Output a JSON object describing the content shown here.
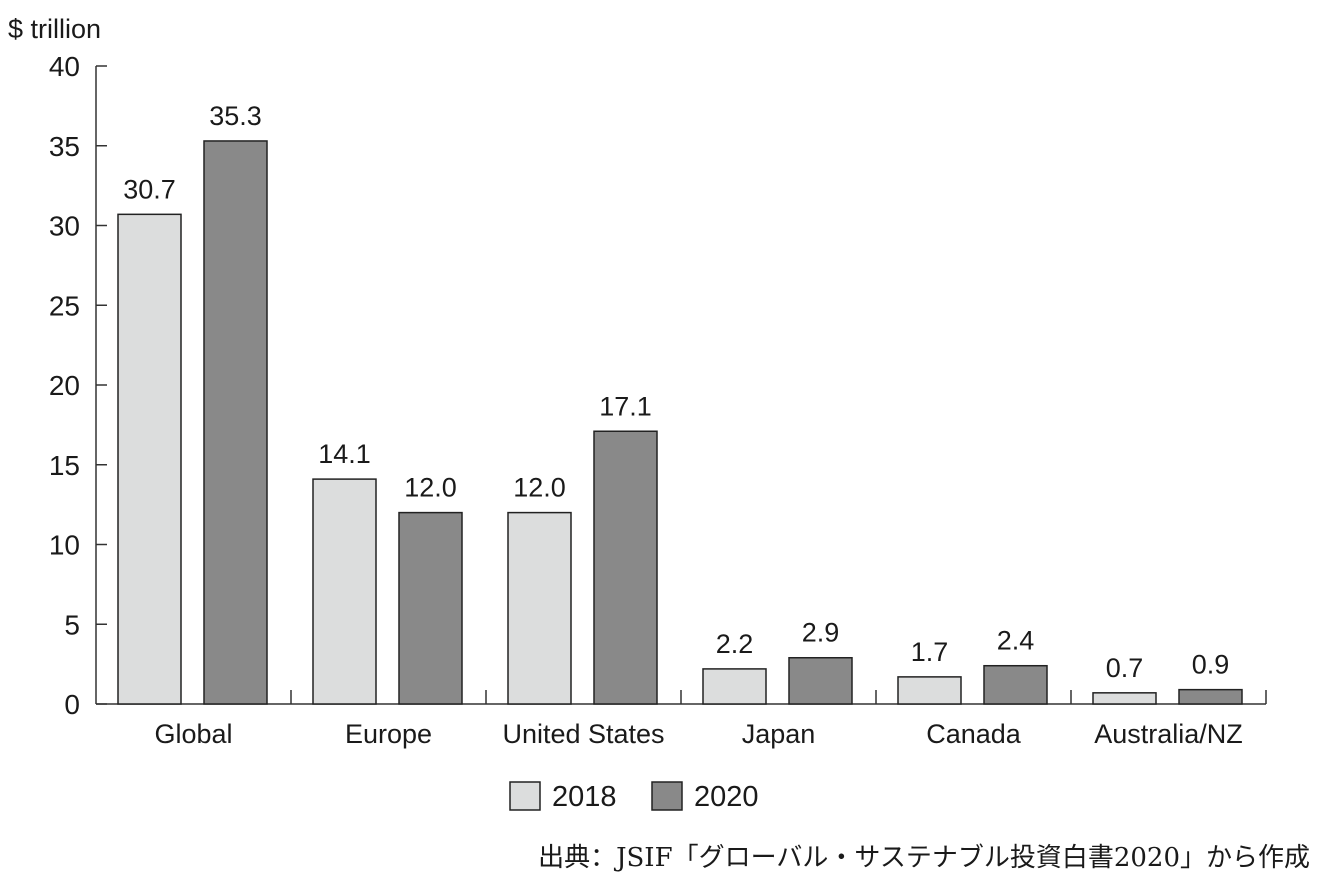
{
  "chart_data": {
    "type": "bar",
    "ylabel": "$ trillion",
    "ylim": [
      0,
      40
    ],
    "yticks": [
      0,
      5,
      10,
      15,
      20,
      25,
      30,
      35,
      40
    ],
    "categories": [
      "Global",
      "Europe",
      "United States",
      "Japan",
      "Canada",
      "Australia/NZ"
    ],
    "series": [
      {
        "name": "2018",
        "color": "#dcdddd",
        "values": [
          30.7,
          14.1,
          12.0,
          2.2,
          1.7,
          0.7
        ],
        "labels": [
          "30.7",
          "14.1",
          "12.0",
          "2.2",
          "1.7",
          "0.7"
        ]
      },
      {
        "name": "2020",
        "color": "#898989",
        "values": [
          35.3,
          12.0,
          17.1,
          2.9,
          2.4,
          0.9
        ],
        "labels": [
          "35.3",
          "12.0",
          "17.1",
          "2.9",
          "2.4",
          "0.9"
        ]
      }
    ],
    "legend": "bottom-center",
    "grid": false
  },
  "source": "出典：JSIF「グローバル・サステナブル投資白書2020」から作成"
}
